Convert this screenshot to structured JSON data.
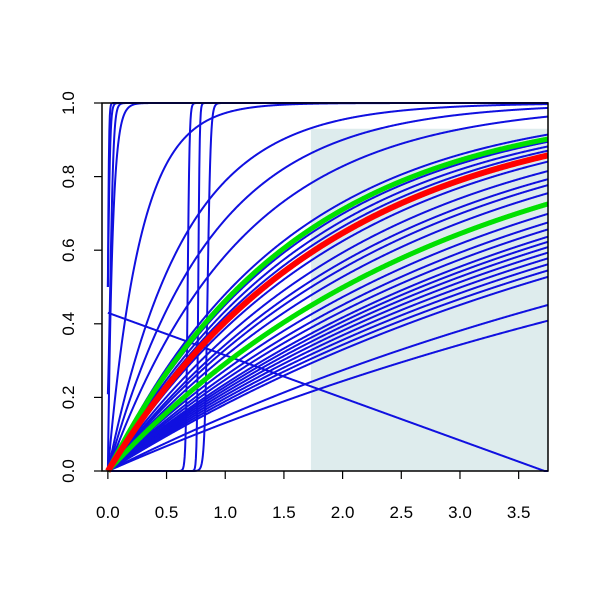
{
  "chart_data": {
    "type": "line",
    "title": "",
    "xlabel": "",
    "ylabel": "",
    "xlim": [
      -0.05,
      3.75
    ],
    "ylim": [
      0,
      1
    ],
    "x_ticks": [
      "0.0",
      "0.5",
      "1.0",
      "1.5",
      "2.0",
      "2.5",
      "3.0",
      "3.5"
    ],
    "y_ticks": [
      "0.0",
      "0.2",
      "0.4",
      "0.6",
      "0.8",
      "1.0"
    ],
    "shaded_region": {
      "x_from": 1.73,
      "x_to": 3.75,
      "y_from": 0,
      "y_to": 0.93,
      "color": "#deeced"
    },
    "colors": {
      "base": "#1010e0",
      "highlight": "#ff0000",
      "band": "#00e000"
    },
    "series": [
      {
        "kind": "logistic",
        "mid": 0.0,
        "scale": 0.005,
        "color": "base"
      },
      {
        "kind": "logistic",
        "mid": 0.0,
        "scale": 0.01,
        "color": "base"
      },
      {
        "kind": "logistic",
        "mid": 0.02,
        "scale": 0.015,
        "color": "base"
      },
      {
        "kind": "saturate",
        "rate": 25,
        "color": "base"
      },
      {
        "kind": "saturate",
        "rate": 3.6,
        "color": "base"
      },
      {
        "kind": "logistic",
        "mid": 0.85,
        "scale": 0.013,
        "color": "base"
      },
      {
        "kind": "logistic",
        "mid": 0.77,
        "scale": 0.006,
        "color": "base"
      },
      {
        "kind": "logistic",
        "mid": 0.68,
        "scale": 0.008,
        "color": "base"
      },
      {
        "kind": "saturate",
        "rate": 1.55,
        "color": "base"
      },
      {
        "kind": "saturate",
        "rate": 1.15,
        "color": "base"
      },
      {
        "kind": "saturate",
        "rate": 0.88,
        "color": "base"
      },
      {
        "kind": "linear_decline",
        "start": 0.43,
        "end_x": 3.72,
        "color": "base"
      },
      {
        "kind": "saturate",
        "rate": 0.655,
        "color": "base"
      },
      {
        "kind": "saturate",
        "rate": 0.62,
        "color": "band"
      },
      {
        "kind": "saturate",
        "rate": 0.6,
        "color": "base"
      },
      {
        "kind": "saturate",
        "rate": 0.57,
        "color": "base"
      },
      {
        "kind": "saturate",
        "rate": 0.545,
        "color": "base"
      },
      {
        "kind": "saturate",
        "rate": 0.52,
        "color": "highlight"
      },
      {
        "kind": "saturate",
        "rate": 0.49,
        "color": "base"
      },
      {
        "kind": "saturate",
        "rate": 0.45,
        "color": "base"
      },
      {
        "kind": "saturate",
        "rate": 0.42,
        "color": "base"
      },
      {
        "kind": "saturate",
        "rate": 0.4,
        "color": "base"
      },
      {
        "kind": "saturate",
        "rate": 0.375,
        "color": "base"
      },
      {
        "kind": "saturate",
        "rate": 0.345,
        "color": "band"
      },
      {
        "kind": "saturate",
        "rate": 0.32,
        "color": "base"
      },
      {
        "kind": "saturate",
        "rate": 0.3,
        "color": "base"
      },
      {
        "kind": "saturate",
        "rate": 0.285,
        "color": "base"
      },
      {
        "kind": "saturate",
        "rate": 0.27,
        "color": "base"
      },
      {
        "kind": "saturate",
        "rate": 0.26,
        "color": "base"
      },
      {
        "kind": "saturate",
        "rate": 0.25,
        "color": "base"
      },
      {
        "kind": "saturate",
        "rate": 0.24,
        "color": "base"
      },
      {
        "kind": "saturate",
        "rate": 0.23,
        "color": "base"
      },
      {
        "kind": "saturate",
        "rate": 0.22,
        "color": "base"
      },
      {
        "kind": "saturate",
        "rate": 0.21,
        "color": "base"
      },
      {
        "kind": "saturate",
        "rate": 0.2,
        "color": "base"
      },
      {
        "kind": "saturate",
        "rate": 0.16,
        "color": "base"
      },
      {
        "kind": "saturate",
        "rate": 0.14,
        "color": "base"
      }
    ]
  }
}
